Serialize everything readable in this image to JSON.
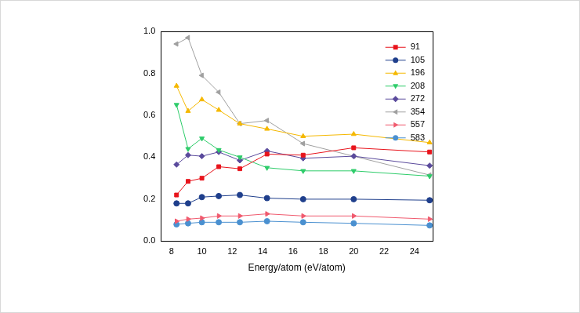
{
  "chart_data": {
    "type": "line",
    "x_label": "Energy/atom (eV/atom)",
    "x": [
      8.33,
      9.09,
      10,
      11.11,
      12.5,
      14.29,
      16.67,
      20,
      25
    ],
    "xlim": [
      7.3,
      25.2
    ],
    "xticks": [
      8,
      10,
      12,
      14,
      16,
      18,
      20,
      22,
      24
    ],
    "ylim": [
      0,
      1
    ],
    "yticks": [
      {
        "value": 0,
        "label": "0.0"
      },
      0.2,
      0.4,
      0.6,
      0.8,
      {
        "value": 1,
        "label": "1.0"
      }
    ],
    "grid": false,
    "legend": "upper right",
    "series": [
      {
        "name": "91",
        "color": "#e8141c",
        "marker": "square",
        "values": [
          0.22,
          0.285,
          0.3,
          0.355,
          0.345,
          0.415,
          0.41,
          0.445,
          0.425
        ]
      },
      {
        "name": "105",
        "color": "#1f3f8c",
        "marker": "circle",
        "values": [
          0.18,
          0.18,
          0.21,
          0.215,
          0.22,
          0.205,
          0.2,
          0.2,
          0.195
        ]
      },
      {
        "name": "196",
        "color": "#f5b800",
        "marker": "triangle-up",
        "values": [
          0.74,
          0.62,
          0.675,
          0.625,
          0.56,
          0.535,
          0.5,
          0.51,
          0.47
        ]
      },
      {
        "name": "208",
        "color": "#2ecc6a",
        "marker": "triangle-down",
        "values": [
          0.65,
          0.44,
          0.49,
          0.435,
          0.4,
          0.35,
          0.335,
          0.335,
          0.31
        ]
      },
      {
        "name": "272",
        "color": "#5a4a9c",
        "marker": "diamond",
        "values": [
          0.365,
          0.41,
          0.405,
          0.425,
          0.385,
          0.43,
          0.395,
          0.405,
          0.36
        ]
      },
      {
        "name": "354",
        "color": "#a0a0a0",
        "marker": "triangle-left",
        "values": [
          0.94,
          0.97,
          0.79,
          0.71,
          0.56,
          0.575,
          0.465,
          0.405,
          0.315
        ]
      },
      {
        "name": "557",
        "color": "#f05a6e",
        "marker": "triangle-right",
        "values": [
          0.095,
          0.105,
          0.11,
          0.12,
          0.12,
          0.13,
          0.12,
          0.12,
          0.105
        ]
      },
      {
        "name": "583",
        "color": "#4a90d0",
        "marker": "circle",
        "values": [
          0.08,
          0.085,
          0.09,
          0.09,
          0.09,
          0.095,
          0.09,
          0.085,
          0.075
        ]
      }
    ]
  }
}
